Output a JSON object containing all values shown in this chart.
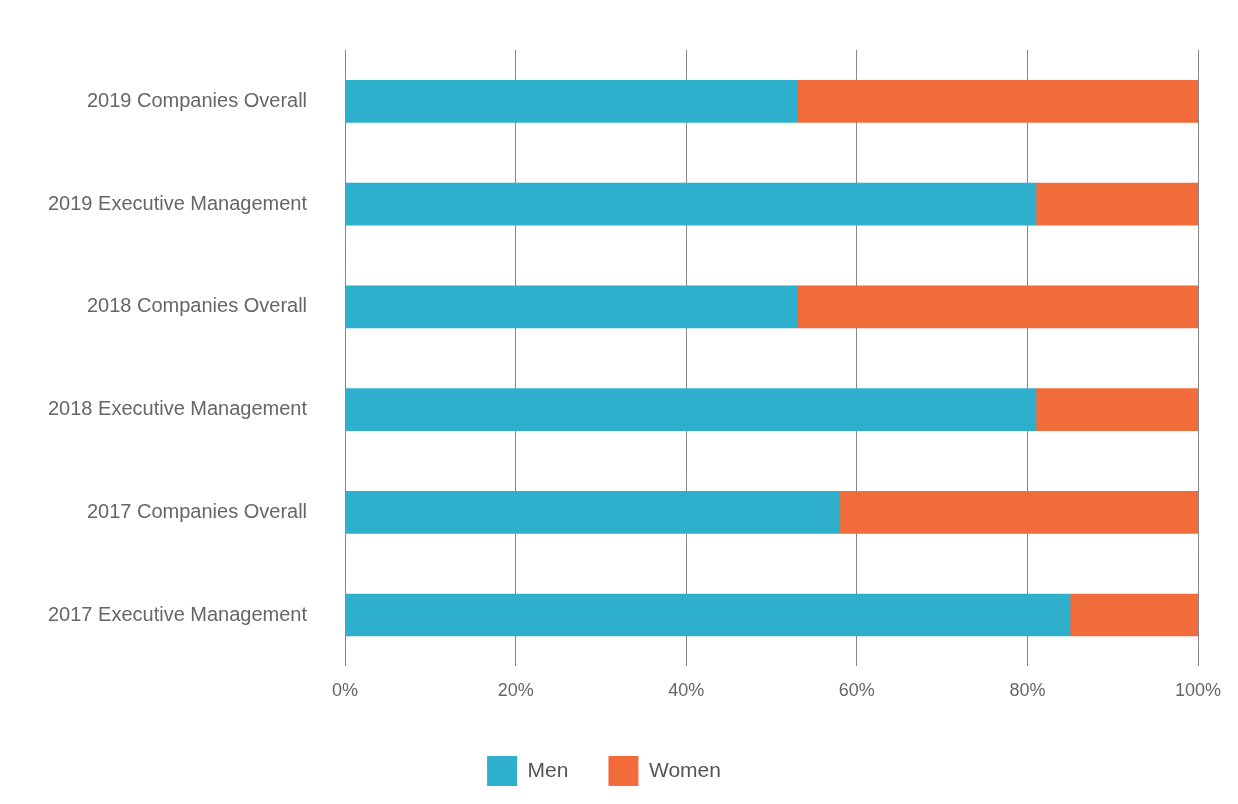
{
  "chart_data": {
    "type": "bar",
    "orientation": "horizontal",
    "stacked": true,
    "categories": [
      "2019 Companies Overall",
      "2019 Executive Management",
      "2018 Companies Overall",
      "2018 Executive Management",
      "2017 Companies Overall",
      "2017 Executive Management"
    ],
    "series": [
      {
        "name": "Men",
        "color": "#2eb0cd",
        "values": [
          53,
          81,
          53,
          81,
          58,
          85
        ]
      },
      {
        "name": "Women",
        "color": "#f26b3a",
        "values": [
          47,
          19,
          47,
          19,
          42,
          15
        ]
      }
    ],
    "xlim": [
      0,
      100
    ],
    "xticks": [
      {
        "value": 0,
        "label": "0%"
      },
      {
        "value": 20,
        "label": "20%"
      },
      {
        "value": 40,
        "label": "40%"
      },
      {
        "value": 60,
        "label": "60%"
      },
      {
        "value": 80,
        "label": "80%"
      },
      {
        "value": 100,
        "label": "100%"
      }
    ],
    "grid": "x",
    "legend": "bottom"
  }
}
